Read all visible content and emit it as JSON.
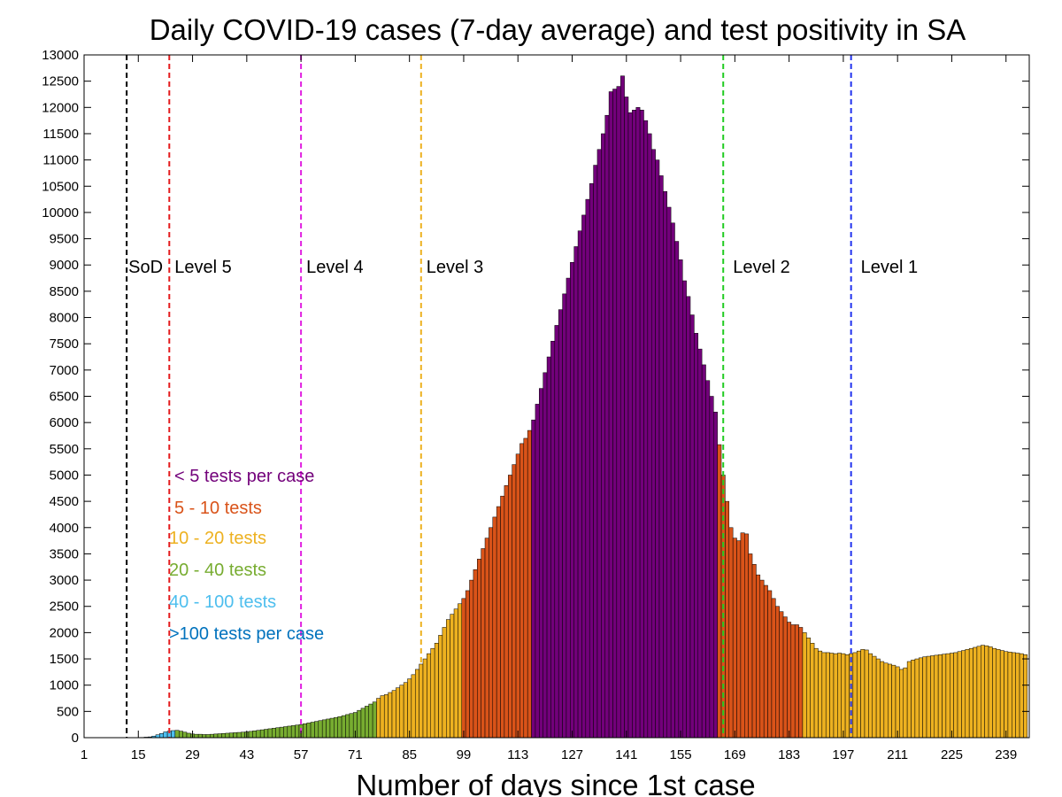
{
  "chart_data": {
    "type": "bar",
    "title": "Daily COVID-19 cases (7-day average) and test positivity in SA",
    "xlabel": "Number of days since 1st case",
    "ylabel": "",
    "xlim": [
      1,
      245
    ],
    "ylim": [
      0,
      13000
    ],
    "grid": false,
    "y_ticks": [
      0,
      500,
      1000,
      1500,
      2000,
      2500,
      3000,
      3500,
      4000,
      4500,
      5000,
      5500,
      6000,
      6500,
      7000,
      7500,
      8000,
      8500,
      9000,
      9500,
      10000,
      10500,
      11000,
      11500,
      12000,
      12500,
      13000
    ],
    "x_ticks": [
      1,
      15,
      29,
      43,
      57,
      71,
      85,
      99,
      113,
      127,
      141,
      155,
      169,
      183,
      197,
      211,
      225,
      239
    ],
    "colors": {
      "purple": "#72007a",
      "orange": "#d95319",
      "yellow": "#edb120",
      "green": "#77ac30",
      "lightblue": "#4dbeee",
      "blue": "#0072bd"
    },
    "legend": [
      {
        "label": "< 5 tests per case",
        "color": "#72007a"
      },
      {
        "label": "5 - 10 tests",
        "color": "#d95319"
      },
      {
        "label": "10 - 20 tests",
        "color": "#edb120"
      },
      {
        "label": "20 - 40 tests",
        "color": "#77ac30"
      },
      {
        "label": "40 - 100 tests",
        "color": "#4dbeee"
      },
      {
        "label": ">100 tests per case",
        "color": "#0072bd"
      }
    ],
    "levels": [
      {
        "label": "SoD",
        "day": 12,
        "color": "#000000"
      },
      {
        "label": "Level 5",
        "day": 23,
        "color": "#e41a1c"
      },
      {
        "label": "Level 4",
        "day": 57,
        "color": "#e020e0"
      },
      {
        "label": "Level 3",
        "day": 88,
        "color": "#edb120"
      },
      {
        "label": "Level 2",
        "day": 166,
        "color": "#22cc22"
      },
      {
        "label": "Level 1",
        "day": 199,
        "color": "#2233ee"
      }
    ],
    "series": [
      {
        "color": "#0072bd",
        "x": [
          13,
          14,
          15,
          16,
          17,
          18
        ],
        "values": [
          1,
          1,
          3,
          5,
          10,
          15
        ]
      },
      {
        "color": "#4dbeee",
        "x": [
          19,
          20,
          21,
          22,
          23,
          24
        ],
        "values": [
          30,
          55,
          80,
          110,
          125,
          135
        ]
      },
      {
        "color": "#77ac30",
        "x": [
          25,
          26,
          27,
          28,
          29,
          30,
          31,
          32,
          33,
          34,
          35,
          36,
          37,
          38,
          39,
          40,
          41,
          42,
          43,
          44,
          45,
          46,
          47,
          48,
          49,
          50,
          51,
          52,
          53,
          54,
          55,
          56,
          57,
          58,
          59,
          60,
          61,
          62,
          63,
          64,
          65,
          66,
          67,
          68,
          69,
          70,
          71,
          72,
          73,
          74,
          75,
          76
        ],
        "values": [
          140,
          125,
          105,
          85,
          70,
          65,
          65,
          60,
          60,
          65,
          70,
          75,
          80,
          85,
          90,
          95,
          100,
          105,
          110,
          120,
          130,
          140,
          150,
          160,
          170,
          180,
          190,
          200,
          210,
          220,
          230,
          240,
          250,
          265,
          280,
          295,
          310,
          325,
          340,
          355,
          370,
          385,
          400,
          420,
          440,
          460,
          480,
          520,
          560,
          600,
          640,
          680
        ]
      },
      {
        "color": "#edb120",
        "x": [
          77,
          78,
          79,
          80,
          81,
          82,
          83,
          84,
          85,
          86,
          87,
          88,
          89,
          90,
          91,
          92,
          93,
          94,
          95,
          96,
          97,
          98
        ],
        "values": [
          750,
          800,
          820,
          860,
          900,
          950,
          1000,
          1050,
          1120,
          1200,
          1300,
          1400,
          1500,
          1600,
          1700,
          1800,
          1950,
          2100,
          2250,
          2350,
          2450,
          2550
        ]
      },
      {
        "color": "#d95319",
        "x": [
          99,
          100,
          101,
          102,
          103,
          104,
          105,
          106,
          107,
          108,
          109,
          110,
          111,
          112,
          113,
          114,
          115,
          116
        ],
        "values": [
          2650,
          2800,
          3000,
          3200,
          3400,
          3600,
          3800,
          4000,
          4200,
          4400,
          4600,
          4800,
          5000,
          5200,
          5400,
          5600,
          5700,
          5850
        ]
      },
      {
        "color": "#72007a",
        "x": [
          117,
          118,
          119,
          120,
          121,
          122,
          123,
          124,
          125,
          126,
          127,
          128,
          129,
          130,
          131,
          132,
          133,
          134,
          135,
          136,
          137,
          138,
          139,
          140,
          141,
          142,
          143,
          144,
          145,
          146,
          147,
          148,
          149,
          150,
          151,
          152,
          153,
          154,
          155,
          156,
          157,
          158,
          159,
          160,
          161,
          162,
          163,
          164
        ],
        "values": [
          6050,
          6350,
          6650,
          6950,
          7250,
          7550,
          7850,
          8150,
          8450,
          8750,
          9050,
          9350,
          9650,
          9950,
          10250,
          10550,
          10900,
          11200,
          11500,
          11850,
          12300,
          12350,
          12400,
          12600,
          12200,
          11900,
          11950,
          12000,
          11950,
          11750,
          11500,
          11200,
          11000,
          10700,
          10400,
          10100,
          9800,
          9450,
          9100,
          8700,
          8400,
          8050,
          7700,
          7400,
          7100,
          6800,
          6500,
          6200
        ]
      },
      {
        "color": "#d95319",
        "x": [
          165,
          166,
          167,
          168,
          169,
          170,
          171,
          172,
          173,
          174,
          175,
          176,
          177,
          178,
          179,
          180,
          181,
          182,
          183,
          184,
          185,
          186
        ],
        "values": [
          5580,
          5000,
          4500,
          4000,
          3800,
          3750,
          3900,
          3880,
          3500,
          3300,
          3100,
          3000,
          2900,
          2800,
          2650,
          2500,
          2400,
          2300,
          2200,
          2150,
          2150,
          2100
        ]
      },
      {
        "color": "#edb120",
        "x": [
          187,
          188,
          189,
          190,
          191,
          192,
          193,
          194,
          195,
          196,
          197,
          198,
          199,
          200,
          201,
          202,
          203,
          204,
          205,
          206,
          207,
          208,
          209,
          210,
          211,
          212,
          213,
          214,
          215,
          216,
          217,
          218,
          219,
          220,
          221,
          222,
          223,
          224,
          225,
          226,
          227,
          228,
          229,
          230,
          231,
          232,
          233,
          234,
          235,
          236,
          237,
          238,
          239,
          240,
          241,
          242,
          243,
          244
        ],
        "values": [
          2000,
          1900,
          1800,
          1700,
          1650,
          1620,
          1620,
          1610,
          1600,
          1610,
          1600,
          1580,
          1600,
          1620,
          1650,
          1680,
          1670,
          1600,
          1550,
          1500,
          1450,
          1420,
          1400,
          1380,
          1350,
          1300,
          1330,
          1450,
          1480,
          1500,
          1520,
          1540,
          1550,
          1560,
          1570,
          1580,
          1590,
          1600,
          1610,
          1620,
          1640,
          1660,
          1680,
          1700,
          1720,
          1740,
          1760,
          1750,
          1730,
          1700,
          1680,
          1660,
          1640,
          1630,
          1620,
          1610,
          1600,
          1580
        ]
      }
    ]
  }
}
